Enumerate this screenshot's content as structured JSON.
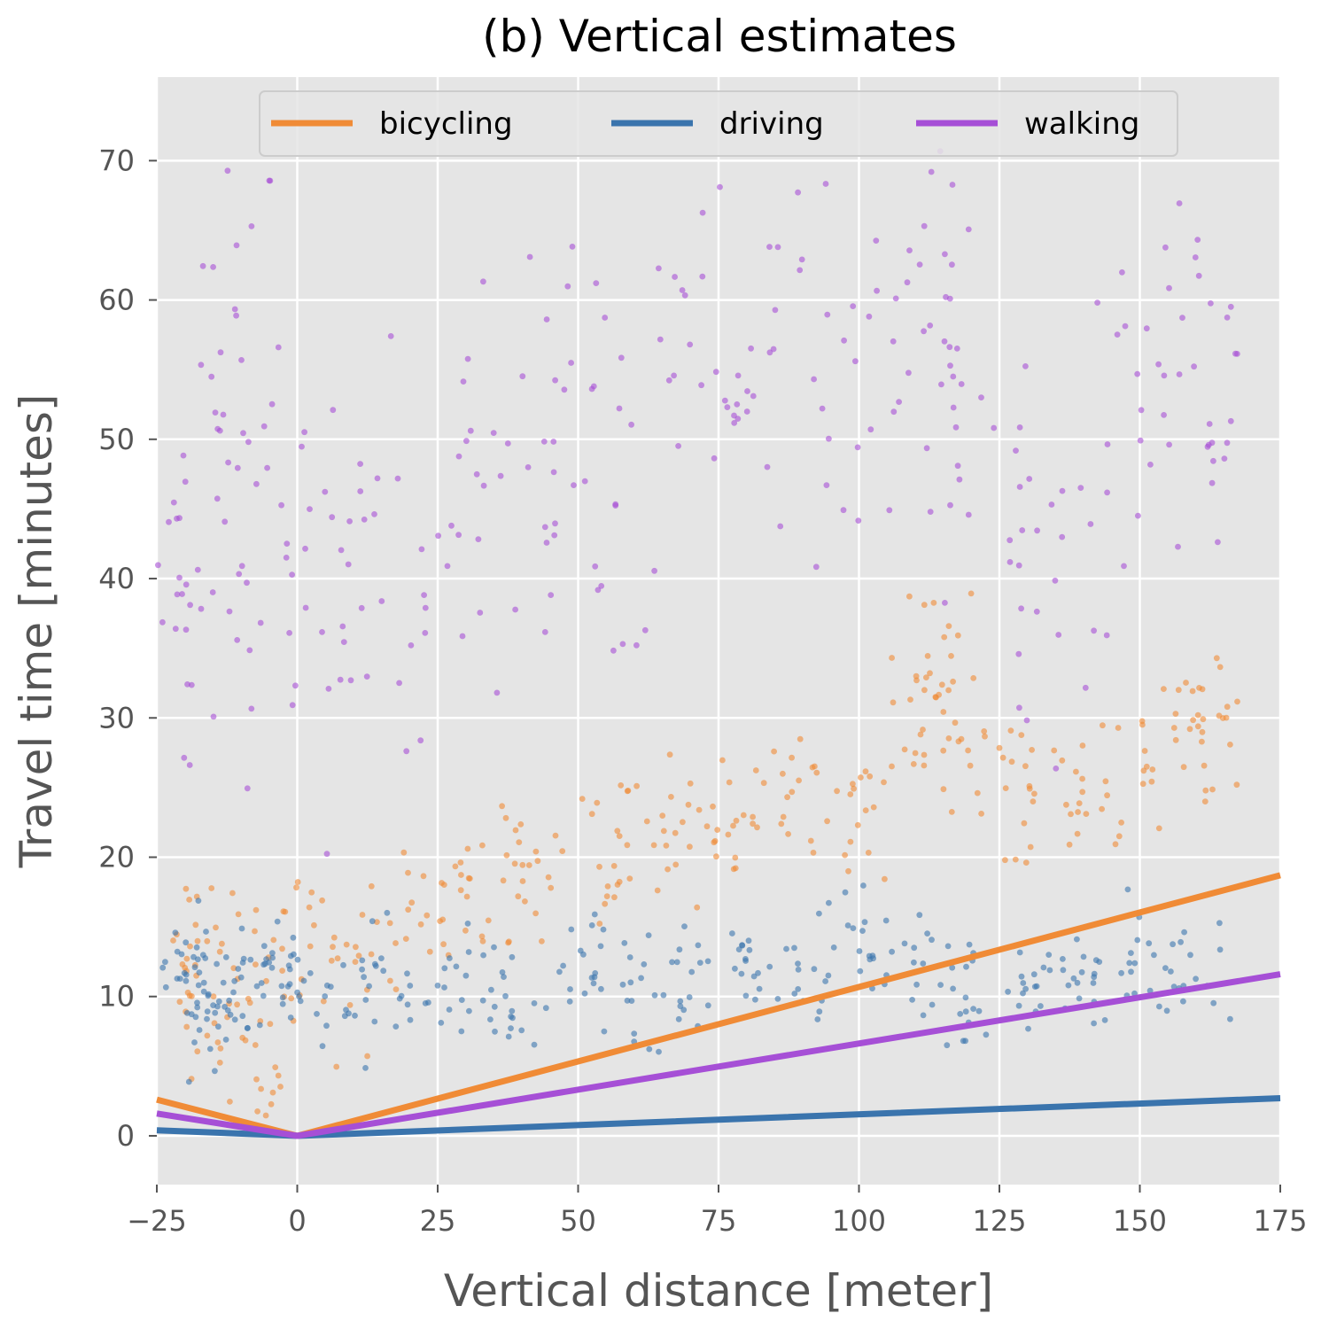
{
  "chart_data": {
    "type": "scatter",
    "title": "(b) Vertical estimates",
    "xlabel": "Vertical distance [meter]",
    "ylabel": "Travel time [minutes]",
    "xlim": [
      -25,
      175
    ],
    "ylim": [
      -3.5,
      76
    ],
    "x_ticks": [
      -25,
      0,
      25,
      50,
      75,
      100,
      125,
      150,
      175
    ],
    "x_tick_labels": [
      "−25",
      "0",
      "25",
      "50",
      "75",
      "100",
      "125",
      "150",
      "175"
    ],
    "y_ticks": [
      0,
      10,
      20,
      30,
      40,
      50,
      60,
      70
    ],
    "y_tick_labels": [
      "0",
      "10",
      "20",
      "30",
      "40",
      "50",
      "60",
      "70"
    ],
    "grid": true,
    "legend": {
      "placement": "top-center",
      "entries": [
        {
          "label": "bicycling",
          "color": "#f08b36"
        },
        {
          "label": "driving",
          "color": "#3a74ad"
        },
        {
          "label": "walking",
          "color": "#a64fd6"
        }
      ]
    },
    "series": [
      {
        "name": "bicycling",
        "kind": "line",
        "color": "#f08b36",
        "points": [
          [
            -25,
            2.6
          ],
          [
            0,
            0
          ],
          [
            175,
            18.7
          ]
        ],
        "scatter_summary": "dense cluster 0-15 min for x -25..0; band ~8-30 min rising with x up to ~167 m",
        "scatter_sample": [
          [
            -20,
            13
          ],
          [
            -15,
            8
          ],
          [
            -10,
            12
          ],
          [
            -5,
            6
          ],
          [
            0,
            14
          ],
          [
            10,
            12
          ],
          [
            20,
            16
          ],
          [
            30,
            17
          ],
          [
            40,
            19
          ],
          [
            50,
            20
          ],
          [
            60,
            21
          ],
          [
            70,
            22
          ],
          [
            80,
            23
          ],
          [
            90,
            25
          ],
          [
            100,
            22
          ],
          [
            110,
            30
          ],
          [
            115,
            34
          ],
          [
            120,
            27
          ],
          [
            130,
            24
          ],
          [
            140,
            25
          ],
          [
            150,
            27
          ],
          [
            160,
            30
          ],
          [
            167,
            30
          ]
        ]
      },
      {
        "name": "driving",
        "kind": "line",
        "color": "#3a74ad",
        "points": [
          [
            -25,
            0.4
          ],
          [
            0,
            0
          ],
          [
            175,
            2.7
          ]
        ],
        "scatter_summary": "dense cluster 5-15 min for x -25..0; band ~5-15 min out to ~160 m",
        "scatter_sample": [
          [
            -22,
            12
          ],
          [
            -18,
            11
          ],
          [
            -14,
            9
          ],
          [
            -10,
            10
          ],
          [
            -5,
            12
          ],
          [
            0,
            11
          ],
          [
            10,
            9
          ],
          [
            20,
            12
          ],
          [
            30,
            11
          ],
          [
            40,
            10
          ],
          [
            50,
            13
          ],
          [
            60,
            10
          ],
          [
            70,
            11
          ],
          [
            80,
            12
          ],
          [
            90,
            11
          ],
          [
            100,
            14
          ],
          [
            110,
            12
          ],
          [
            120,
            10
          ],
          [
            130,
            11
          ],
          [
            140,
            11
          ],
          [
            150,
            12
          ],
          [
            160,
            12
          ]
        ]
      },
      {
        "name": "walking",
        "kind": "line",
        "color": "#a64fd6",
        "points": [
          [
            -25,
            1.6
          ],
          [
            0,
            0
          ],
          [
            175,
            11.6
          ]
        ],
        "scatter_summary": "wide spread 10-70 min; vertical streak near x=-10",
        "scatter_sample": [
          [
            -24,
            42
          ],
          [
            -20,
            35
          ],
          [
            -12,
            40
          ],
          [
            -10,
            50
          ],
          [
            -9,
            60
          ],
          [
            0,
            38
          ],
          [
            10,
            45
          ],
          [
            20,
            40
          ],
          [
            30,
            44
          ],
          [
            40,
            48
          ],
          [
            50,
            50
          ],
          [
            60,
            45
          ],
          [
            70,
            52
          ],
          [
            80,
            55
          ],
          [
            90,
            58
          ],
          [
            100,
            55
          ],
          [
            110,
            60
          ],
          [
            115,
            63
          ],
          [
            120,
            45
          ],
          [
            130,
            40
          ],
          [
            140,
            45
          ],
          [
            150,
            52
          ],
          [
            160,
            53
          ],
          [
            166,
            52
          ]
        ]
      }
    ]
  }
}
